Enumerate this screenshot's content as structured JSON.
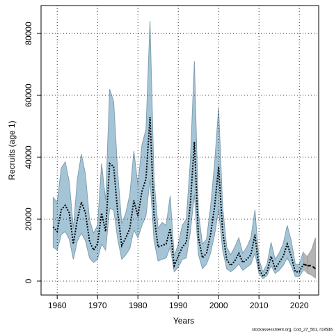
{
  "chart_data": {
    "type": "line_band",
    "xlabel": "Years",
    "ylabel": "Recruits (age 1)",
    "footer": "stockassessment.org, Cod_27_5b1, r18546",
    "xlim": [
      1956,
      2024.8
    ],
    "ylim": [
      -4500,
      89000
    ],
    "xticks": [
      1960,
      1970,
      1980,
      1990,
      2000,
      2010,
      2020
    ],
    "yticks": [
      0,
      20000,
      40000,
      60000,
      80000
    ],
    "grid": true,
    "series": [
      {
        "color": "#000000",
        "band_color": "#a5c5d7",
        "band_edge": "#7f9fb0",
        "line_style": "dotted",
        "x": [
          1959,
          1960,
          1961,
          1962,
          1963,
          1964,
          1965,
          1966,
          1967,
          1968,
          1969,
          1970,
          1971,
          1972,
          1973,
          1974,
          1975,
          1976,
          1977,
          1978,
          1979,
          1980,
          1981,
          1982,
          1983,
          1984,
          1985,
          1986,
          1987,
          1988,
          1989,
          1990,
          1991,
          1992,
          1993,
          1994,
          1995,
          1996,
          1997,
          1998,
          1999,
          2000,
          2001,
          2002,
          2003,
          2004,
          2005,
          2006,
          2007,
          2008,
          2009,
          2010,
          2011,
          2012,
          2013,
          2014,
          2015,
          2016,
          2017,
          2018,
          2019,
          2020,
          2021
        ],
        "values": [
          17500,
          16000,
          23000,
          24500,
          22000,
          12000,
          20000,
          25500,
          22000,
          13000,
          10000,
          12000,
          22000,
          16000,
          38000,
          37000,
          22000,
          11500,
          14000,
          17000,
          26000,
          21000,
          29000,
          33000,
          53000,
          21000,
          11000,
          11500,
          12000,
          17000,
          5000,
          8000,
          11000,
          12500,
          25000,
          45000,
          14000,
          7500,
          9000,
          15000,
          24000,
          37000,
          16000,
          7000,
          5000,
          6500,
          9000,
          6000,
          7000,
          8500,
          15000,
          4000,
          1500,
          3000,
          8000,
          4000,
          6000,
          8000,
          12000,
          8000,
          3000,
          3000,
          5500
        ],
        "upper": [
          27000,
          25500,
          36500,
          38500,
          32000,
          17000,
          33000,
          41000,
          34500,
          20000,
          15500,
          18000,
          38000,
          26000,
          62000,
          58000,
          35000,
          18500,
          22000,
          28000,
          42000,
          31000,
          44000,
          49000,
          84000,
          33000,
          17000,
          19000,
          18000,
          27500,
          8000,
          12000,
          18000,
          20000,
          39000,
          71000,
          22000,
          12000,
          13500,
          24000,
          38000,
          56000,
          24000,
          11000,
          8500,
          11000,
          14000,
          9000,
          11000,
          14000,
          23000,
          7000,
          3000,
          5500,
          12500,
          7000,
          9000,
          12000,
          18000,
          13000,
          5500,
          5500,
          9500
        ],
        "lower": [
          11000,
          10000,
          15000,
          16000,
          13500,
          7000,
          13000,
          15500,
          13000,
          7500,
          6000,
          7000,
          12000,
          10000,
          23500,
          23000,
          13500,
          7000,
          8500,
          10500,
          16500,
          14000,
          18000,
          21000,
          33000,
          13000,
          6500,
          7000,
          7500,
          11000,
          3000,
          4500,
          7000,
          7500,
          16000,
          28000,
          8500,
          4000,
          5500,
          9000,
          15000,
          23000,
          10000,
          4000,
          3000,
          4000,
          5500,
          3500,
          4500,
          5500,
          9000,
          2500,
          800,
          1800,
          5000,
          2500,
          3500,
          5000,
          7500,
          5000,
          1500,
          1500,
          3500
        ]
      },
      {
        "color": "#000000",
        "band_color": "#b4b4b4",
        "band_edge": "#999999",
        "line_style": "dashed",
        "x": [
          2022,
          2023,
          2024
        ],
        "values": [
          5000,
          5000,
          4000
        ],
        "upper": [
          8000,
          10000,
          14000
        ],
        "lower": [
          2500,
          2000,
          1000
        ]
      }
    ]
  }
}
